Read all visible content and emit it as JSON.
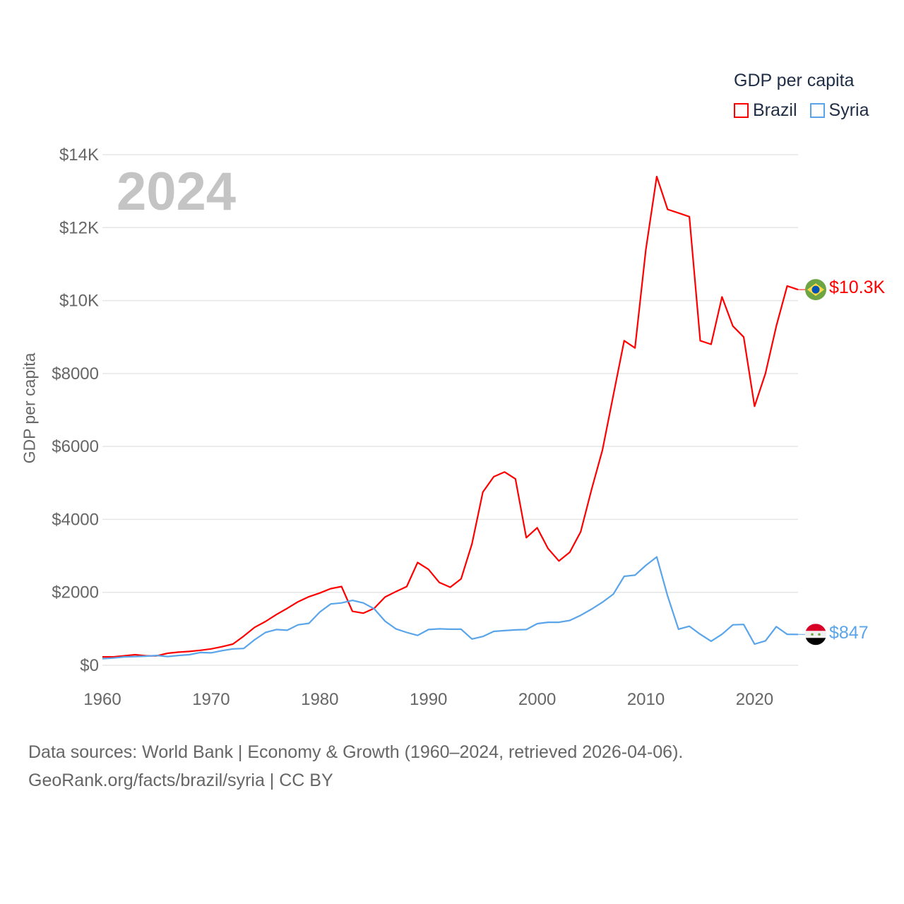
{
  "legend": {
    "title": "GDP per capita",
    "items": [
      {
        "name": "Brazil",
        "color": "#ff0000"
      },
      {
        "name": "Syria",
        "color": "#5aa5ea"
      }
    ]
  },
  "year_label": "2024",
  "source": {
    "line1": "Data sources: World Bank | Economy & Growth (1960–2024, retrieved 2026-04-06).",
    "line2": "GeoRank.org/facts/brazil/syria | CC BY"
  },
  "end_labels": {
    "brazil": "$10.3K",
    "syria": "$847"
  },
  "chart_data": {
    "type": "line",
    "title": "GDP per capita",
    "xlabel": "",
    "ylabel": "GDP per capita",
    "xlim": [
      1960,
      2024
    ],
    "ylim": [
      0,
      14000
    ],
    "grid": true,
    "legend_position": "top-right",
    "x_ticks": [
      1960,
      1970,
      1980,
      1990,
      2000,
      2010,
      2020
    ],
    "x_tick_labels": [
      "1960",
      "1970",
      "1980",
      "1990",
      "2000",
      "2010",
      "2020"
    ],
    "y_ticks": [
      0,
      2000,
      4000,
      6000,
      8000,
      10000,
      12000,
      14000
    ],
    "y_tick_labels": [
      "$0",
      "$2000",
      "$4000",
      "$6000",
      "$8000",
      "$10K",
      "$12K",
      "$14K"
    ],
    "x": [
      1960,
      1961,
      1962,
      1963,
      1964,
      1965,
      1966,
      1967,
      1968,
      1969,
      1970,
      1971,
      1972,
      1973,
      1974,
      1975,
      1976,
      1977,
      1978,
      1979,
      1980,
      1981,
      1982,
      1983,
      1984,
      1985,
      1986,
      1987,
      1988,
      1989,
      1990,
      1991,
      1992,
      1993,
      1994,
      1995,
      1996,
      1997,
      1998,
      1999,
      2000,
      2001,
      2002,
      2003,
      2004,
      2005,
      2006,
      2007,
      2008,
      2009,
      2010,
      2011,
      2012,
      2013,
      2014,
      2015,
      2016,
      2017,
      2018,
      2019,
      2020,
      2021,
      2022,
      2023,
      2024
    ],
    "series": [
      {
        "name": "Brazil",
        "color": "#ff0000",
        "values": [
          230,
          230,
          260,
          290,
          260,
          260,
          330,
          360,
          380,
          410,
          450,
          510,
          580,
          800,
          1040,
          1200,
          1390,
          1560,
          1740,
          1880,
          1980,
          2100,
          2160,
          1480,
          1430,
          1560,
          1870,
          2020,
          2160,
          2820,
          2630,
          2270,
          2140,
          2370,
          3330,
          4750,
          5170,
          5300,
          5110,
          3500,
          3770,
          3200,
          2860,
          3100,
          3660,
          4820,
          5900,
          7400,
          8900,
          8700,
          11400,
          13400,
          12500,
          12400,
          12300,
          8900,
          8800,
          10100,
          9300,
          9000,
          7100,
          8000,
          9300,
          10400,
          10300
        ]
      },
      {
        "name": "Syria",
        "color": "#5aa5ea",
        "values": [
          180,
          200,
          230,
          240,
          250,
          270,
          240,
          270,
          290,
          350,
          340,
          400,
          450,
          460,
          700,
          900,
          980,
          960,
          1110,
          1150,
          1460,
          1680,
          1710,
          1780,
          1710,
          1550,
          1210,
          1000,
          900,
          820,
          980,
          1000,
          990,
          990,
          720,
          790,
          930,
          950,
          970,
          980,
          1140,
          1180,
          1180,
          1230,
          1370,
          1540,
          1730,
          1950,
          2440,
          2470,
          2740,
          2970,
          1900,
          990,
          1070,
          850,
          660,
          850,
          1110,
          1120,
          580,
          670,
          1060,
          850,
          847
        ]
      }
    ]
  }
}
